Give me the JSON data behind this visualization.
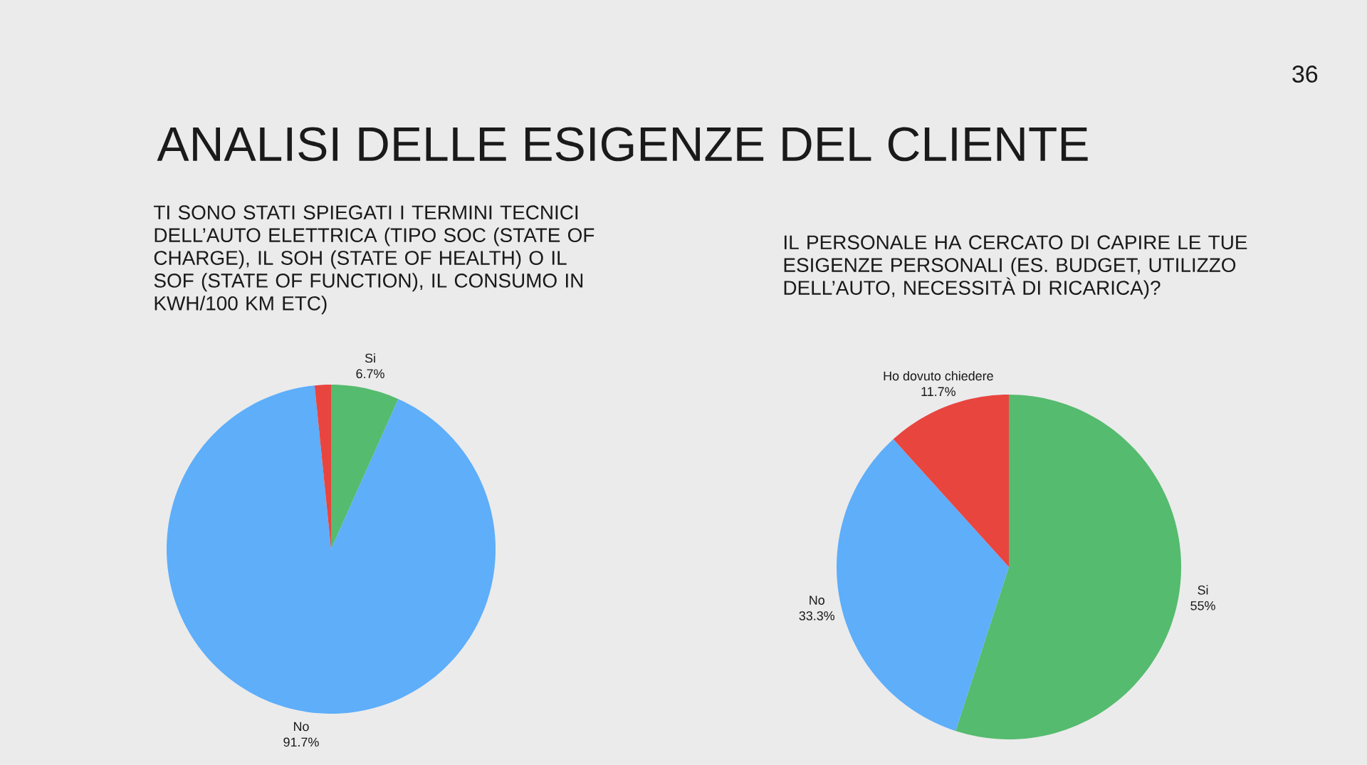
{
  "chart_data": [
    {
      "type": "other",
      "title": "ANALISI DELLE ESIGENZE DEL CLIENTE",
      "annotations": [
        "36"
      ]
    },
    {
      "type": "pie",
      "title": "TI SONO STATI SPIEGATI I TERMINI TECNICI DELL’AUTO ELETTRICA (TIPO SOC (STATE OF CHARGE), IL SOH (STATE OF HEALTH) O IL SOF (STATE OF FUNCTION), IL CONSUMO IN KWH/100 KM ETC)",
      "categories": [
        "Si",
        "No",
        null
      ],
      "values": [
        6.7,
        91.7,
        1.6
      ],
      "colors": [
        "#55bb6e",
        "#5eaefa",
        "#e8453f"
      ],
      "value_labels": [
        "6.7%",
        "91.7%",
        null
      ]
    },
    {
      "type": "pie",
      "title": "IL PERSONALE HA CERCATO DI CAPIRE LE TUE ESIGENZE PERSONALI (ES. BUDGET, UTILIZZO DELL’AUTO, NECESSITÀ DI RICARICA)?",
      "categories": [
        "Si",
        "No",
        "Ho dovuto chiedere"
      ],
      "values": [
        55,
        33.3,
        11.7
      ],
      "colors": [
        "#55bb6e",
        "#5eaefa",
        "#e8453f"
      ],
      "value_labels": [
        "55%",
        "33.3%",
        "11.7%"
      ]
    }
  ]
}
